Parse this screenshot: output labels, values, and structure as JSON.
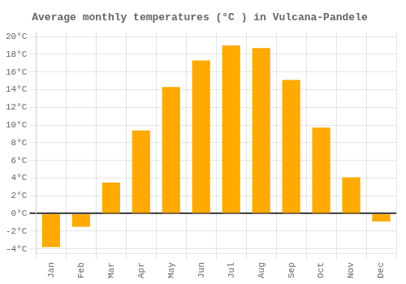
{
  "chart_data": {
    "type": "bar",
    "title": "Average monthly temperatures (°C ) in Vulcana-Pandele",
    "categories": [
      "Jan",
      "Feb",
      "Mar",
      "Apr",
      "May",
      "Jun",
      "Jul",
      "Aug",
      "Sep",
      "Oct",
      "Nov",
      "Dec"
    ],
    "values": [
      -3.8,
      -1.5,
      3.5,
      9.4,
      14.3,
      17.3,
      19.0,
      18.7,
      15.1,
      9.7,
      4.1,
      -0.9
    ],
    "color": "#FFAA00",
    "ylim": [
      -4.5,
      20.5
    ],
    "yticks": [
      {
        "value": -4,
        "label": "-4°C"
      },
      {
        "value": -2,
        "label": "-2°C"
      },
      {
        "value": 0,
        "label": "0°C"
      },
      {
        "value": 2,
        "label": "2°C"
      },
      {
        "value": 4,
        "label": "4°C"
      },
      {
        "value": 6,
        "label": "6°C"
      },
      {
        "value": 8,
        "label": "8°C"
      },
      {
        "value": 10,
        "label": "10°C"
      },
      {
        "value": 12,
        "label": "12°C"
      },
      {
        "value": 14,
        "label": "14°C"
      },
      {
        "value": 16,
        "label": "16°C"
      },
      {
        "value": 18,
        "label": "18°C"
      },
      {
        "value": 20,
        "label": "20°C"
      }
    ],
    "grid": true
  }
}
